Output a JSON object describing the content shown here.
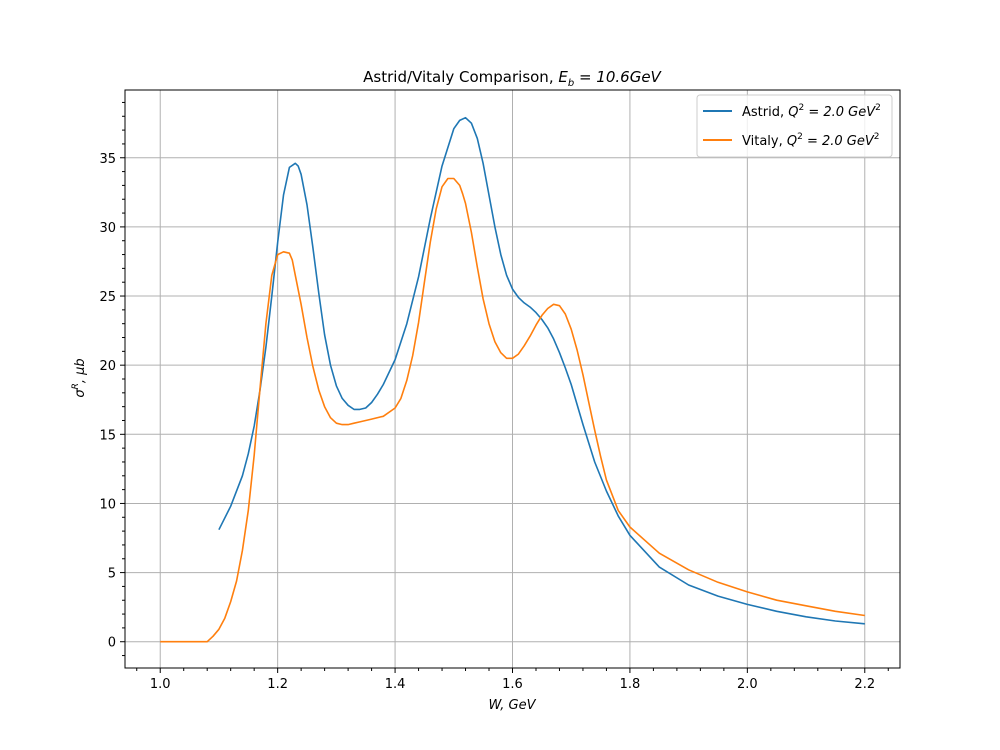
{
  "chart_data": {
    "type": "line",
    "title_prefix": "Astrid/Vitaly Comparison, ",
    "title_math": "E",
    "title_math_sub": "b",
    "title_suffix": " = 10.6GeV",
    "xlabel": "W, GeV",
    "ylabel_base": "σ",
    "ylabel_sup": "R",
    "ylabel_rest": ", μb",
    "xlim": [
      0.94,
      2.26
    ],
    "ylim": [
      -1.9,
      39.9
    ],
    "xticks": [
      1.0,
      1.2,
      1.4,
      1.6,
      1.8,
      2.0,
      2.2
    ],
    "xtick_labels": [
      "1.0",
      "1.2",
      "1.4",
      "1.6",
      "1.8",
      "2.0",
      "2.2"
    ],
    "yticks": [
      0,
      5,
      10,
      15,
      20,
      25,
      30,
      35
    ],
    "ytick_labels": [
      "0",
      "5",
      "10",
      "15",
      "20",
      "25",
      "30",
      "35"
    ],
    "grid": true,
    "legend_position": "top-right",
    "series": [
      {
        "name": "Astrid, Q² = 2.0 GeV²",
        "name_prefix": "Astrid, ",
        "name_math": "Q",
        "name_sup": "2",
        "name_mid": " = 2.0 GeV",
        "name_sup2": "2",
        "color": "#1f77b4",
        "x": [
          1.1,
          1.12,
          1.14,
          1.15,
          1.16,
          1.17,
          1.18,
          1.19,
          1.2,
          1.21,
          1.22,
          1.23,
          1.235,
          1.24,
          1.25,
          1.26,
          1.27,
          1.28,
          1.29,
          1.3,
          1.31,
          1.32,
          1.33,
          1.34,
          1.35,
          1.36,
          1.37,
          1.38,
          1.4,
          1.42,
          1.44,
          1.46,
          1.48,
          1.5,
          1.51,
          1.52,
          1.53,
          1.54,
          1.55,
          1.56,
          1.57,
          1.58,
          1.59,
          1.6,
          1.61,
          1.62,
          1.63,
          1.64,
          1.65,
          1.66,
          1.67,
          1.68,
          1.69,
          1.7,
          1.72,
          1.74,
          1.76,
          1.78,
          1.8,
          1.85,
          1.9,
          1.95,
          2.0,
          2.05,
          2.1,
          2.15,
          2.2
        ],
        "y": [
          8.1,
          9.8,
          12.0,
          13.6,
          15.6,
          18.2,
          21.3,
          25.0,
          28.9,
          32.3,
          34.3,
          34.6,
          34.4,
          33.8,
          31.6,
          28.5,
          25.2,
          22.2,
          20.0,
          18.5,
          17.6,
          17.1,
          16.8,
          16.8,
          16.9,
          17.3,
          17.9,
          18.6,
          20.4,
          23.0,
          26.4,
          30.6,
          34.4,
          37.1,
          37.7,
          37.9,
          37.5,
          36.4,
          34.6,
          32.3,
          30.0,
          28.0,
          26.5,
          25.5,
          24.9,
          24.5,
          24.2,
          23.8,
          23.3,
          22.7,
          21.9,
          20.9,
          19.8,
          18.6,
          15.7,
          13.0,
          10.9,
          9.1,
          7.7,
          5.4,
          4.1,
          3.3,
          2.7,
          2.2,
          1.8,
          1.5,
          1.3
        ]
      },
      {
        "name": "Vitaly, Q² = 2.0 GeV²",
        "name_prefix": "Vitaly, ",
        "name_math": "Q",
        "name_sup": "2",
        "name_mid": " = 2.0 GeV",
        "name_sup2": "2",
        "color": "#ff7f0e",
        "x": [
          1.0,
          1.02,
          1.04,
          1.06,
          1.08,
          1.09,
          1.1,
          1.11,
          1.12,
          1.13,
          1.14,
          1.15,
          1.16,
          1.17,
          1.18,
          1.19,
          1.2,
          1.21,
          1.22,
          1.225,
          1.23,
          1.24,
          1.25,
          1.26,
          1.27,
          1.28,
          1.29,
          1.3,
          1.31,
          1.32,
          1.33,
          1.34,
          1.36,
          1.38,
          1.4,
          1.41,
          1.42,
          1.43,
          1.44,
          1.45,
          1.46,
          1.47,
          1.48,
          1.49,
          1.5,
          1.51,
          1.515,
          1.52,
          1.53,
          1.54,
          1.55,
          1.56,
          1.57,
          1.58,
          1.59,
          1.6,
          1.61,
          1.62,
          1.63,
          1.64,
          1.65,
          1.66,
          1.67,
          1.68,
          1.69,
          1.7,
          1.71,
          1.72,
          1.73,
          1.74,
          1.75,
          1.76,
          1.78,
          1.8,
          1.85,
          1.9,
          1.95,
          2.0,
          2.05,
          2.1,
          2.15,
          2.2
        ],
        "y": [
          0.0,
          0.0,
          0.0,
          0.0,
          0.0,
          0.4,
          0.9,
          1.7,
          2.9,
          4.4,
          6.6,
          9.5,
          13.5,
          18.3,
          23.0,
          26.5,
          28.0,
          28.2,
          28.1,
          27.6,
          26.5,
          24.4,
          22.0,
          19.9,
          18.2,
          17.0,
          16.2,
          15.8,
          15.7,
          15.7,
          15.8,
          15.9,
          16.1,
          16.3,
          16.9,
          17.6,
          18.9,
          20.7,
          23.1,
          26.0,
          28.9,
          31.3,
          32.9,
          33.5,
          33.5,
          33.0,
          32.4,
          31.7,
          29.6,
          27.1,
          24.8,
          23.0,
          21.7,
          20.9,
          20.5,
          20.5,
          20.8,
          21.4,
          22.1,
          22.9,
          23.6,
          24.1,
          24.4,
          24.3,
          23.7,
          22.6,
          21.1,
          19.3,
          17.3,
          15.3,
          13.4,
          11.7,
          9.5,
          8.3,
          6.4,
          5.2,
          4.3,
          3.6,
          3.0,
          2.6,
          2.2,
          1.9
        ]
      }
    ]
  }
}
